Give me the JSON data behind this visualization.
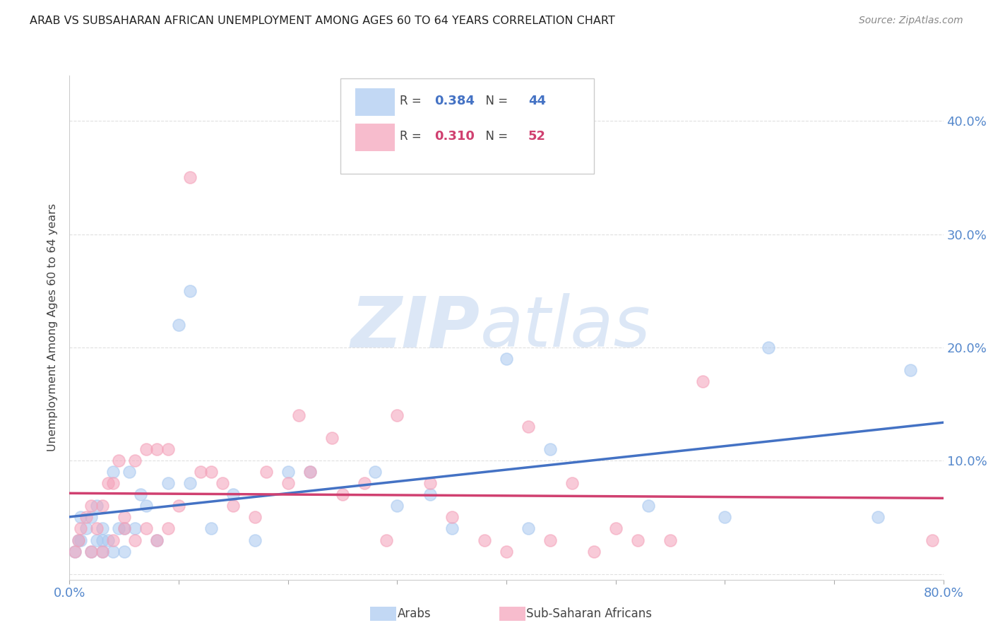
{
  "title": "ARAB VS SUBSAHARAN AFRICAN UNEMPLOYMENT AMONG AGES 60 TO 64 YEARS CORRELATION CHART",
  "source": "Source: ZipAtlas.com",
  "ylabel_label": "Unemployment Among Ages 60 to 64 years",
  "xlim": [
    0.0,
    0.8
  ],
  "ylim": [
    -0.005,
    0.44
  ],
  "watermark_zip": "ZIP",
  "watermark_atlas": "atlas",
  "legend_entries": [
    {
      "label": "Arabs",
      "R": "0.384",
      "N": "44",
      "scatter_color": "#A8C8F0",
      "line_color": "#4472C4"
    },
    {
      "label": "Sub-Saharan Africans",
      "R": "0.310",
      "N": "52",
      "scatter_color": "#F4A0B8",
      "line_color": "#D04070"
    }
  ],
  "arab_scatter_x": [
    0.005,
    0.008,
    0.01,
    0.01,
    0.015,
    0.02,
    0.02,
    0.025,
    0.025,
    0.03,
    0.03,
    0.03,
    0.035,
    0.04,
    0.04,
    0.045,
    0.05,
    0.05,
    0.055,
    0.06,
    0.065,
    0.07,
    0.08,
    0.09,
    0.1,
    0.11,
    0.11,
    0.13,
    0.15,
    0.17,
    0.2,
    0.22,
    0.28,
    0.3,
    0.33,
    0.35,
    0.4,
    0.42,
    0.44,
    0.53,
    0.6,
    0.64,
    0.74,
    0.77
  ],
  "arab_scatter_y": [
    0.02,
    0.03,
    0.03,
    0.05,
    0.04,
    0.02,
    0.05,
    0.03,
    0.06,
    0.02,
    0.03,
    0.04,
    0.03,
    0.02,
    0.09,
    0.04,
    0.02,
    0.04,
    0.09,
    0.04,
    0.07,
    0.06,
    0.03,
    0.08,
    0.22,
    0.08,
    0.25,
    0.04,
    0.07,
    0.03,
    0.09,
    0.09,
    0.09,
    0.06,
    0.07,
    0.04,
    0.19,
    0.04,
    0.11,
    0.06,
    0.05,
    0.2,
    0.05,
    0.18
  ],
  "subsaharan_scatter_x": [
    0.005,
    0.008,
    0.01,
    0.015,
    0.02,
    0.02,
    0.025,
    0.03,
    0.03,
    0.035,
    0.04,
    0.04,
    0.045,
    0.05,
    0.05,
    0.06,
    0.06,
    0.07,
    0.07,
    0.08,
    0.08,
    0.09,
    0.09,
    0.1,
    0.11,
    0.12,
    0.13,
    0.14,
    0.15,
    0.17,
    0.18,
    0.2,
    0.21,
    0.22,
    0.24,
    0.25,
    0.27,
    0.29,
    0.3,
    0.33,
    0.35,
    0.38,
    0.4,
    0.42,
    0.44,
    0.46,
    0.48,
    0.5,
    0.52,
    0.55,
    0.58,
    0.79
  ],
  "subsaharan_scatter_y": [
    0.02,
    0.03,
    0.04,
    0.05,
    0.02,
    0.06,
    0.04,
    0.02,
    0.06,
    0.08,
    0.03,
    0.08,
    0.1,
    0.04,
    0.05,
    0.03,
    0.1,
    0.04,
    0.11,
    0.03,
    0.11,
    0.04,
    0.11,
    0.06,
    0.35,
    0.09,
    0.09,
    0.08,
    0.06,
    0.05,
    0.09,
    0.08,
    0.14,
    0.09,
    0.12,
    0.07,
    0.08,
    0.03,
    0.14,
    0.08,
    0.05,
    0.03,
    0.02,
    0.13,
    0.03,
    0.08,
    0.02,
    0.04,
    0.03,
    0.03,
    0.17,
    0.03
  ],
  "background_color": "#FFFFFF",
  "grid_color": "#DDDDDD",
  "title_color": "#222222",
  "tick_color": "#5588CC",
  "ylabel_color": "#444444",
  "source_color": "#888888"
}
